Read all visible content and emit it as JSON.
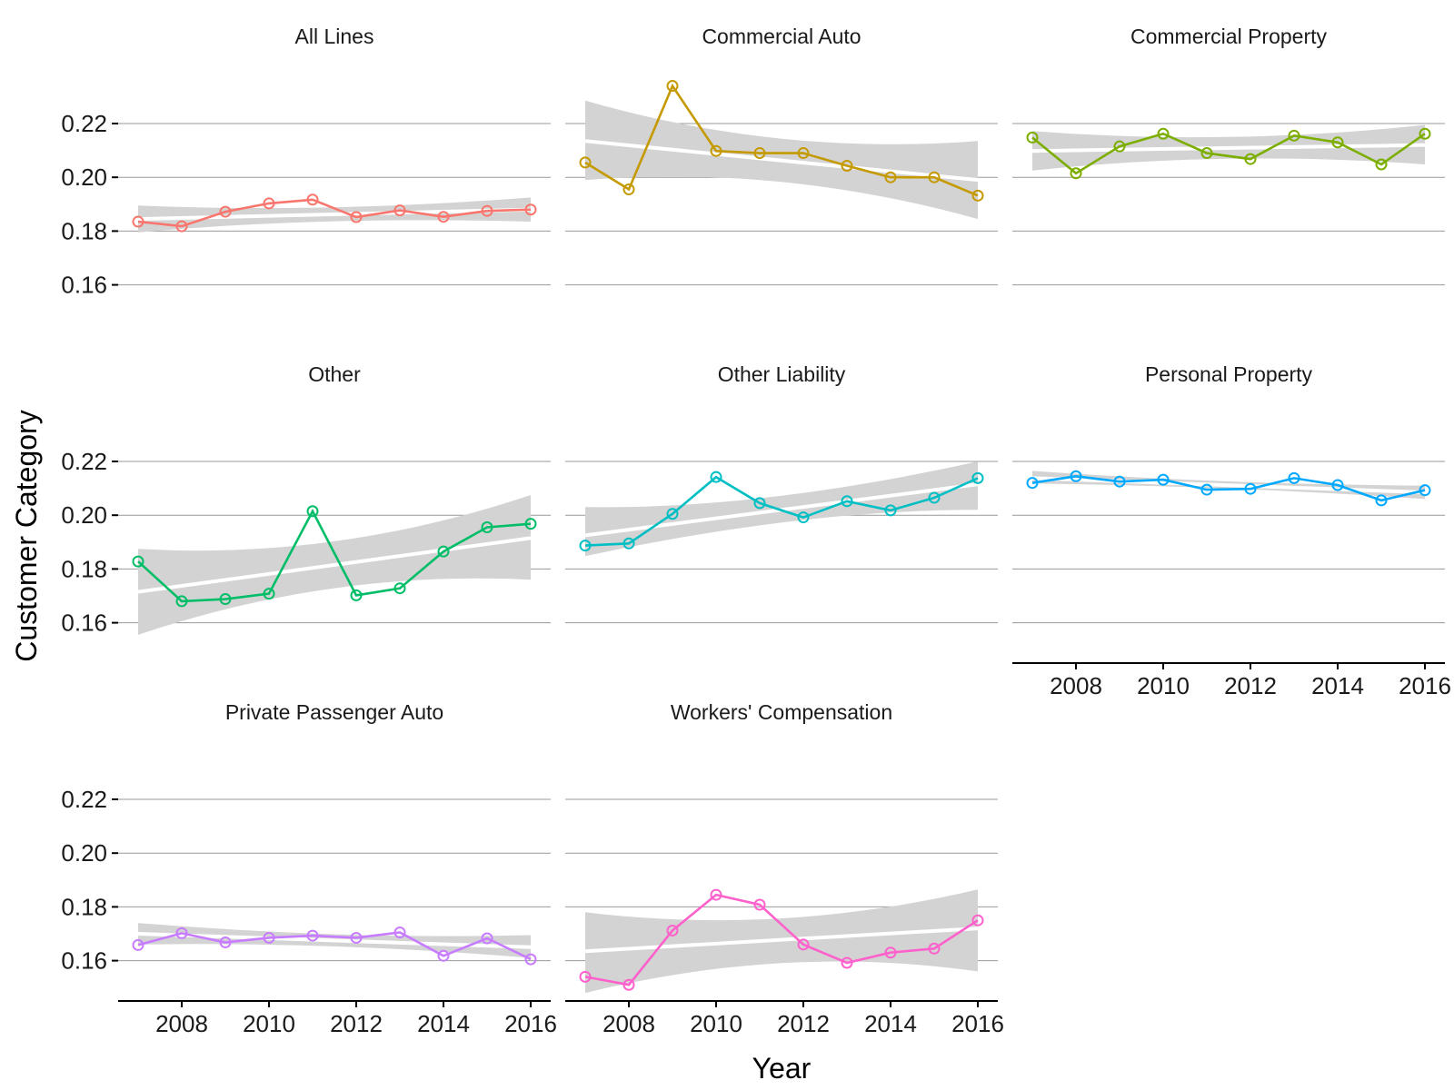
{
  "chart_data": {
    "type": "line",
    "ylabel": "Customer Category",
    "xlabel": "Year",
    "xlim": [
      2007,
      2016
    ],
    "ylim": [
      0.145,
      0.245
    ],
    "x_ticks": [
      2008,
      2010,
      2012,
      2014,
      2016
    ],
    "y_ticks": [
      "0.16",
      "0.18",
      "0.20",
      "0.22"
    ],
    "grid": true,
    "x": [
      2007,
      2008,
      2009,
      2010,
      2011,
      2012,
      2013,
      2014,
      2015,
      2016
    ],
    "facets": [
      {
        "title": "All Lines",
        "color": "#F8766D",
        "values": [
          0.1835,
          0.1818,
          0.1872,
          0.1903,
          0.1917,
          0.1852,
          0.1877,
          0.1853,
          0.1875,
          0.188
        ],
        "trend": [
          0.1845,
          0.188
        ],
        "band_lower": [
          0.1795,
          0.1835
        ],
        "band_upper": [
          0.1895,
          0.1925
        ]
      },
      {
        "title": "Commercial Auto",
        "color": "#C49A00",
        "values": [
          0.2055,
          0.1955,
          0.234,
          0.2098,
          0.209,
          0.209,
          0.2043,
          0.2,
          0.2,
          0.1932
        ],
        "trend": [
          0.2135,
          0.199
        ],
        "band_lower": [
          0.199,
          0.1845
        ],
        "band_upper": [
          0.2285,
          0.2135
        ]
      },
      {
        "title": "Commercial Property",
        "color": "#7CAE00",
        "values": [
          0.2148,
          0.2015,
          0.2115,
          0.2162,
          0.209,
          0.2068,
          0.2155,
          0.213,
          0.2048,
          0.2162
        ],
        "trend": [
          0.2098,
          0.212
        ],
        "band_lower": [
          0.2025,
          0.2048
        ],
        "band_upper": [
          0.2172,
          0.2195
        ]
      },
      {
        "title": "Other",
        "color": "#00BE67",
        "values": [
          0.1828,
          0.168,
          0.1688,
          0.1708,
          0.2015,
          0.1702,
          0.1728,
          0.1865,
          0.1955,
          0.1968
        ],
        "trend": [
          0.1715,
          0.1915
        ],
        "band_lower": [
          0.1555,
          0.176
        ],
        "band_upper": [
          0.1875,
          0.2075
        ]
      },
      {
        "title": "Other Liability",
        "color": "#00BFC4",
        "values": [
          0.1887,
          0.1895,
          0.2005,
          0.2142,
          0.2045,
          0.1992,
          0.2052,
          0.2018,
          0.2065,
          0.2138
        ],
        "trend": [
          0.1925,
          0.2115
        ],
        "band_lower": [
          0.1848,
          0.202
        ],
        "band_upper": [
          0.203,
          0.22
        ]
      },
      {
        "title": "Personal Property",
        "color": "#00A9FF",
        "values": [
          0.212,
          0.2145,
          0.2125,
          0.2132,
          0.2095,
          0.2098,
          0.2138,
          0.2112,
          0.2055,
          0.2093
        ],
        "trend": [
          0.2138,
          0.2085
        ],
        "band_lower": [
          0.2118,
          0.206
        ],
        "band_upper": [
          0.2165,
          0.211
        ]
      },
      {
        "title": "Private Passenger Auto",
        "color": "#C77CFF",
        "values": [
          0.1658,
          0.1702,
          0.1668,
          0.1685,
          0.1693,
          0.1685,
          0.1705,
          0.1618,
          0.1683,
          0.1605
        ],
        "trend": [
          0.17,
          0.165
        ],
        "band_lower": [
          0.166,
          0.161
        ],
        "band_upper": [
          0.174,
          0.1695
        ]
      },
      {
        "title": "Workers' Compensation",
        "color": "#FF61CC",
        "values": [
          0.154,
          0.151,
          0.1712,
          0.1845,
          0.1808,
          0.166,
          0.1592,
          0.163,
          0.1645,
          0.175
        ],
        "trend": [
          0.1635,
          0.172
        ],
        "band_lower": [
          0.148,
          0.156
        ],
        "band_upper": [
          0.178,
          0.1865
        ]
      }
    ]
  }
}
